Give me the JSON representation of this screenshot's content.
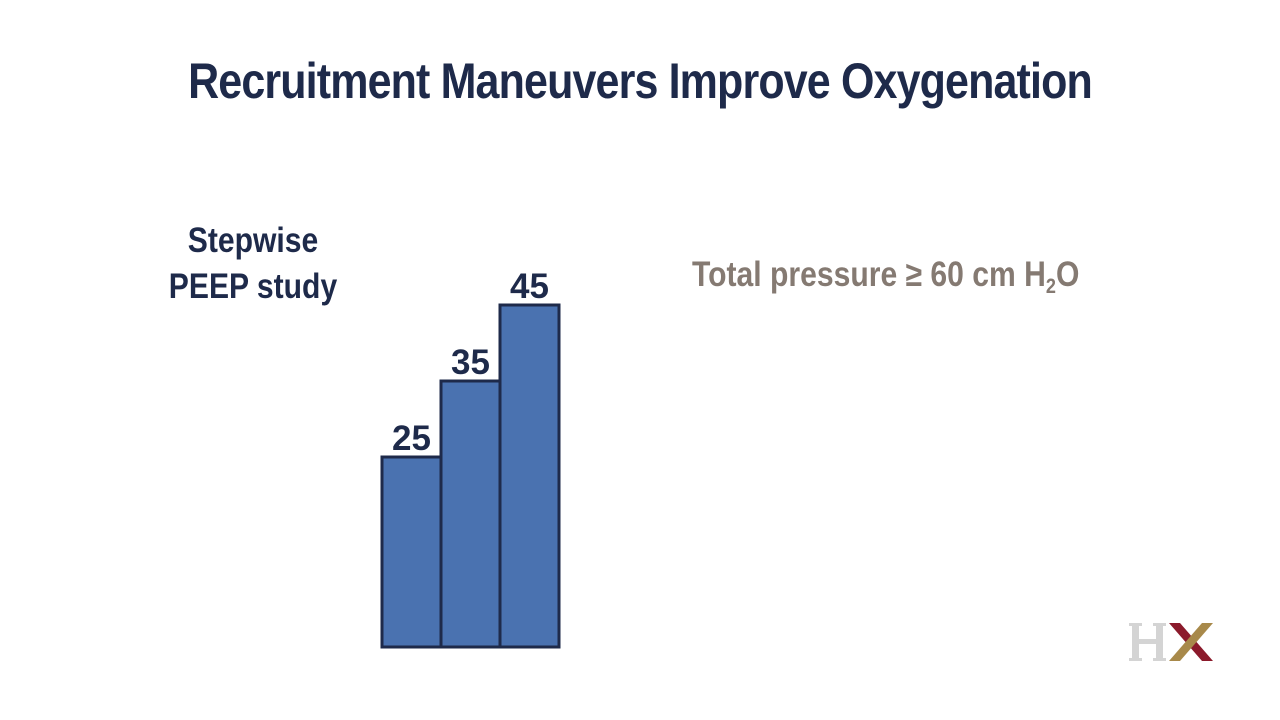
{
  "slide": {
    "title": "Recruitment Maneuvers Improve Oxygenation",
    "study_label_line1": "Stepwise",
    "study_label_line2": "PEEP study",
    "pressure_note": {
      "prefix": "Total pressure ≥ 60 cm H",
      "subscript": "2",
      "suffix": "O"
    },
    "logo_text": "HX"
  },
  "colors": {
    "title": "#1e2a4a",
    "bar_fill": "#4a72b0",
    "bar_stroke": "#1e2a4a",
    "note": "#857a72",
    "logo_h": "#d4d4d4",
    "logo_x_red": "#8b1a2b",
    "logo_x_gold": "#a8894a"
  },
  "chart_data": {
    "type": "bar",
    "categories": [
      "",
      "",
      ""
    ],
    "values": [
      25,
      35,
      45
    ],
    "data_labels": [
      "25",
      "35",
      "45"
    ],
    "title": "",
    "xlabel": "",
    "ylabel": "",
    "ylim": [
      0,
      45
    ],
    "grid": false
  }
}
